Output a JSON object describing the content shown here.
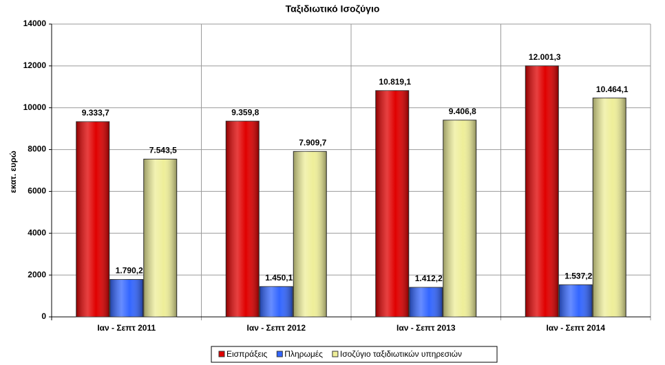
{
  "chart_data": {
    "type": "bar",
    "title": "Ταξιδιωτικό Ισοζύγιο",
    "y_label": "εκατ. ευρώ",
    "categories": [
      "Ιαν - Σεπτ 2011",
      "Ιαν - Σεπτ 2012",
      "Ιαν - Σεπτ 2013",
      "Ιαν - Σεπτ 2014"
    ],
    "series": [
      {
        "name": "Εισπράξεις",
        "color": "#e00000",
        "values": [
          9333.7,
          9359.8,
          10819.1,
          12001.3
        ],
        "value_labels": [
          "9.333,7",
          "9.359,8",
          "10.819,1",
          "12.001,3"
        ]
      },
      {
        "name": "Πληρωμές",
        "color": "#3366ff",
        "values": [
          1790.2,
          1450.1,
          1412.2,
          1537.2
        ],
        "value_labels": [
          "1.790,2",
          "1.450,1",
          "1.412,2",
          "1.537,2"
        ]
      },
      {
        "name": "Ισοζύγιο ταξιδιωτικών υπηρεσιών",
        "color": "#eeee99",
        "values": [
          7543.5,
          7909.7,
          9406.8,
          10464.1
        ],
        "value_labels": [
          "7.543,5",
          "7.909,7",
          "9.406,8",
          "10.464,1"
        ]
      }
    ],
    "ylim": [
      0,
      14000
    ],
    "yticks": [
      0,
      2000,
      4000,
      6000,
      8000,
      10000,
      12000,
      14000
    ],
    "grid": true,
    "legend": "bottom"
  }
}
